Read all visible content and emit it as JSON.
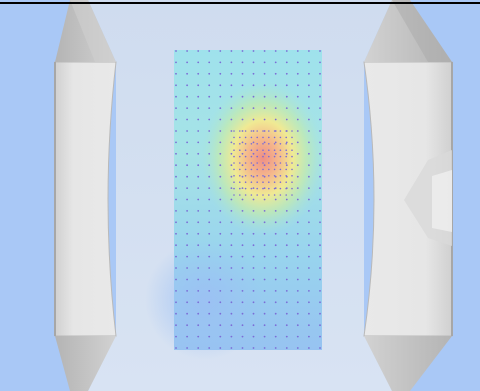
{
  "viewport": {
    "background_color": "#a9c8f6",
    "floor_color": "#d4e0f1",
    "wall_color": "#e0e0e0",
    "wall_edge_color": "#bdbdbd",
    "hood_color": "#c6c6c6",
    "hood_shade_color": "#a8a8a8",
    "frame_color": "#000000"
  },
  "heatmap": {
    "colormap": [
      "#7fb0ef",
      "#8fd6ee",
      "#bfeab1",
      "#f6ec8e",
      "#f6c48e",
      "#ee8f86"
    ],
    "grid_columns": 14,
    "grid_rows": 27,
    "refined_columns": 11,
    "refined_rows": 11,
    "point_color": "#7b6cd6",
    "peak_value_fraction": 1.0
  }
}
